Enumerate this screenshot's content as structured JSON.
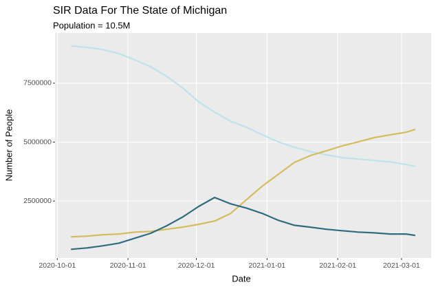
{
  "chart_data": {
    "type": "line",
    "title": "SIR Data For The State of Michigan",
    "subtitle": "Population = 10.5M",
    "x_label": "Date",
    "y_label": "Number of People",
    "x": [
      "2020-10-07",
      "2020-10-14",
      "2020-10-21",
      "2020-10-28",
      "2020-11-04",
      "2020-11-11",
      "2020-11-18",
      "2020-11-25",
      "2020-12-02",
      "2020-12-09",
      "2020-12-16",
      "2020-12-23",
      "2020-12-30",
      "2021-01-06",
      "2021-01-13",
      "2021-01-20",
      "2021-01-27",
      "2021-02-03",
      "2021-02-10",
      "2021-02-17",
      "2021-02-24",
      "2021-03-03",
      "2021-03-07"
    ],
    "series": [
      {
        "color": "#bde3ec",
        "values": [
          9080000,
          9020000,
          8930000,
          8760000,
          8490000,
          8200000,
          7790000,
          7300000,
          6710000,
          6270000,
          5890000,
          5630000,
          5310000,
          5010000,
          4780000,
          4600000,
          4460000,
          4340000,
          4280000,
          4220000,
          4160000,
          4050000,
          3960000
        ]
      },
      {
        "color": "#d5bb5c",
        "values": [
          980000,
          1010000,
          1070000,
          1100000,
          1180000,
          1210000,
          1300000,
          1390000,
          1510000,
          1650000,
          1970000,
          2560000,
          3140000,
          3640000,
          4140000,
          4430000,
          4630000,
          4840000,
          5010000,
          5190000,
          5310000,
          5420000,
          5540000
        ]
      },
      {
        "color": "#2f6b7f",
        "values": [
          450000,
          510000,
          600000,
          710000,
          920000,
          1130000,
          1450000,
          1820000,
          2270000,
          2650000,
          2380000,
          2200000,
          1970000,
          1680000,
          1470000,
          1390000,
          1300000,
          1240000,
          1180000,
          1150000,
          1100000,
          1100000,
          1040000
        ]
      }
    ],
    "xlim": [
      "2020-09-30",
      "2021-03-14"
    ],
    "xticks": [
      "2020-10-01",
      "2020-11-01",
      "2020-12-01",
      "2021-01-01",
      "2021-02-01",
      "2021-03-01"
    ],
    "ylim": [
      80000,
      9630000
    ],
    "yticks": [
      2500000,
      5000000,
      7500000
    ],
    "grid": true
  }
}
